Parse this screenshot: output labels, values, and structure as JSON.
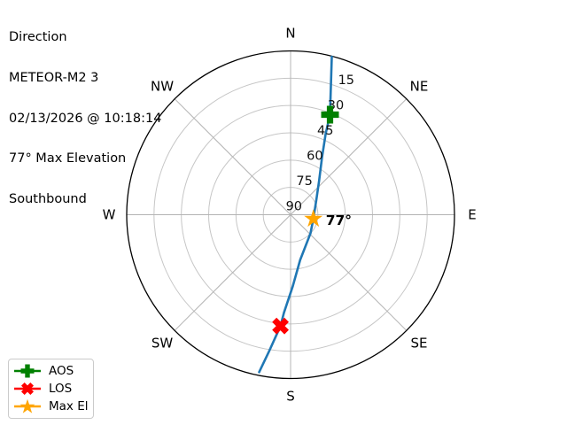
{
  "title": "Direction",
  "pass_info": {
    "satellite": "METEOR-M2 3",
    "datetime": "02/13/2026 @ 10:18:14",
    "max_elevation": "77° Max Elevation",
    "direction": "Southbound"
  },
  "annotation": {
    "max_el": "77°"
  },
  "colors": {
    "track": "#1f77b4",
    "aos": "#008000",
    "los": "#ff0000",
    "max_el": "#ffa500",
    "grid": "#c6c6c6",
    "spoke": "#b4b4b4",
    "outline": "#000000"
  },
  "legend": {
    "items": [
      {
        "id": "aos",
        "label": "AOS",
        "marker": "plus-marker-icon",
        "color": "#008000"
      },
      {
        "id": "los",
        "label": "LOS",
        "marker": "x-marker-icon",
        "color": "#ff0000"
      },
      {
        "id": "max_el",
        "label": "Max El",
        "marker": "star-marker-icon",
        "color": "#ffa500"
      }
    ]
  },
  "chart_data": {
    "type": "line",
    "projection": "polar-sky",
    "title": "Direction",
    "azimuth_zero": "N",
    "azimuth_direction": "clockwise",
    "rlim": [
      90,
      0
    ],
    "grid": true,
    "legend_position": "lower-left",
    "compass_labels": [
      "N",
      "NE",
      "E",
      "SE",
      "S",
      "SW",
      "W",
      "NW"
    ],
    "compass_azimuths_deg": [
      0,
      45,
      90,
      135,
      180,
      225,
      270,
      315
    ],
    "elevation_ticks": [
      15,
      30,
      45,
      60,
      75,
      90
    ],
    "elevation_tick_label_azimuth_deg": 22.5,
    "track_color": "#1f77b4",
    "track_az_el": [
      [
        14.6,
        0.3
      ],
      [
        21.5,
        30.9
      ],
      [
        23.4,
        41.5
      ],
      [
        28.7,
        54.0
      ],
      [
        40.0,
        65.6
      ],
      [
        59.8,
        73.6
      ],
      [
        100.3,
        77.3
      ],
      [
        133.4,
        75.0
      ],
      [
        168.1,
        64.6
      ],
      [
        178.2,
        50.7
      ],
      [
        183.9,
        36.0
      ],
      [
        185.2,
        28.6
      ],
      [
        188.9,
        14.2
      ],
      [
        191.3,
        1.8
      ]
    ],
    "markers": [
      {
        "name": "AOS",
        "shape": "plus",
        "color": "#008000",
        "az": 21.5,
        "el": 30.9
      },
      {
        "name": "LOS",
        "shape": "x",
        "color": "#ff0000",
        "az": 185.2,
        "el": 28.6
      },
      {
        "name": "Max El",
        "shape": "star",
        "color": "#ffa500",
        "az": 100.3,
        "el": 77.3,
        "annotation": "77°"
      }
    ]
  }
}
